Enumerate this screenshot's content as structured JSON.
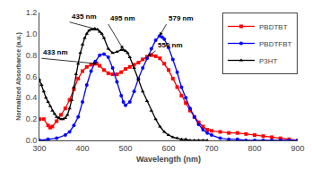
{
  "chart_data": {
    "type": "line",
    "xlabel": "Wavelength (nm)",
    "ylabel": "Normalized Absorbance (a.u.)",
    "xlim": [
      300,
      900
    ],
    "ylim": [
      0,
      1.2
    ],
    "xticks": [
      300,
      400,
      500,
      600,
      700,
      800,
      900
    ],
    "yticks": [
      {
        "value": 0.0,
        "label": "0.0"
      },
      0.2,
      0.4,
      0.6,
      0.8,
      {
        "value": 1.0,
        "label": "1.0"
      },
      1.2
    ],
    "grid": false,
    "legend": "upper right",
    "series": [
      {
        "name": "PBDTBT",
        "color": "#FF0000",
        "marker": "square",
        "x": [
          300,
          310,
          320,
          325,
          330,
          340,
          350,
          360,
          370,
          380,
          390,
          400,
          410,
          420,
          430,
          433,
          440,
          450,
          460,
          470,
          480,
          490,
          500,
          510,
          520,
          530,
          540,
          550,
          560,
          570,
          580,
          590,
          600,
          610,
          620,
          630,
          640,
          650,
          660,
          670,
          680,
          690,
          700,
          720,
          740,
          760,
          780,
          800,
          820,
          840,
          860,
          880,
          900
        ],
        "values": [
          0.2,
          0.2,
          0.14,
          0.12,
          0.13,
          0.18,
          0.24,
          0.3,
          0.38,
          0.48,
          0.58,
          0.65,
          0.69,
          0.71,
          0.72,
          0.72,
          0.7,
          0.66,
          0.63,
          0.62,
          0.62,
          0.64,
          0.67,
          0.69,
          0.71,
          0.73,
          0.76,
          0.785,
          0.8,
          0.79,
          0.77,
          0.72,
          0.66,
          0.58,
          0.5,
          0.42,
          0.35,
          0.28,
          0.22,
          0.17,
          0.13,
          0.1,
          0.09,
          0.08,
          0.07,
          0.07,
          0.06,
          0.05,
          0.04,
          0.03,
          0.02,
          0.01,
          0.0
        ]
      },
      {
        "name": "PBDTFBT",
        "color": "#0000FF",
        "marker": "circle",
        "x": [
          300,
          320,
          340,
          360,
          370,
          380,
          390,
          400,
          410,
          420,
          430,
          440,
          450,
          460,
          470,
          480,
          490,
          495,
          500,
          510,
          520,
          530,
          540,
          550,
          560,
          570,
          579,
          585,
          590,
          600,
          610,
          620,
          630,
          640,
          650,
          660,
          670,
          680,
          690,
          700,
          720,
          740,
          760,
          780,
          800,
          820,
          840,
          860,
          880,
          900
        ],
        "values": [
          0.0,
          0.01,
          0.02,
          0.05,
          0.08,
          0.14,
          0.22,
          0.36,
          0.52,
          0.65,
          0.74,
          0.8,
          0.81,
          0.78,
          0.68,
          0.55,
          0.42,
          0.36,
          0.33,
          0.36,
          0.46,
          0.58,
          0.68,
          0.77,
          0.86,
          0.94,
          0.98,
          0.97,
          0.95,
          0.87,
          0.76,
          0.64,
          0.5,
          0.4,
          0.3,
          0.22,
          0.15,
          0.1,
          0.07,
          0.05,
          0.02,
          0.01,
          0.01,
          0.0,
          0.0,
          0.0,
          0.0,
          0.0,
          0.0,
          0.0
        ]
      },
      {
        "name": "P3HT",
        "color": "#000000",
        "marker": "triangle-up",
        "x": [
          300,
          305,
          310,
          315,
          320,
          325,
          330,
          335,
          340,
          345,
          350,
          355,
          360,
          365,
          370,
          375,
          380,
          385,
          390,
          395,
          400,
          405,
          410,
          415,
          420,
          425,
          430,
          435,
          440,
          445,
          450,
          460,
          470,
          480,
          490,
          495,
          500,
          505,
          510,
          520,
          530,
          540,
          550,
          560,
          570,
          580,
          590,
          600,
          610,
          620,
          630,
          640,
          650,
          660,
          670,
          680,
          690
        ],
        "values": [
          0.57,
          0.52,
          0.46,
          0.4,
          0.36,
          0.32,
          0.28,
          0.25,
          0.22,
          0.21,
          0.2,
          0.2,
          0.21,
          0.24,
          0.3,
          0.38,
          0.5,
          0.62,
          0.72,
          0.82,
          0.9,
          0.96,
          1.0,
          1.03,
          1.04,
          1.04,
          1.04,
          1.04,
          1.02,
          1.0,
          0.96,
          0.86,
          0.82,
          0.83,
          0.85,
          0.85,
          0.84,
          0.82,
          0.78,
          0.68,
          0.57,
          0.46,
          0.37,
          0.28,
          0.2,
          0.13,
          0.08,
          0.05,
          0.03,
          0.02,
          0.01,
          0.01,
          0.0,
          0.0,
          0.0,
          0.0,
          0.0
        ]
      }
    ],
    "annotations": [
      {
        "text": "435 nm",
        "x": 435,
        "y": 1.04,
        "text_x": 370,
        "text_y": 1.11
      },
      {
        "text": "495 nm",
        "x": 495,
        "y": 0.855,
        "text_x": 460,
        "text_y": 1.09
      },
      {
        "text": "433 nm",
        "x": 433,
        "y": 0.72,
        "text_x": 305,
        "text_y": 0.77
      },
      {
        "text": "579 nm",
        "x": 579,
        "y": 0.98,
        "text_x": 595,
        "text_y": 1.09
      },
      {
        "text": "550 nm",
        "x": 550,
        "y": 0.785,
        "text_x": 570,
        "text_y": 0.84
      }
    ]
  }
}
